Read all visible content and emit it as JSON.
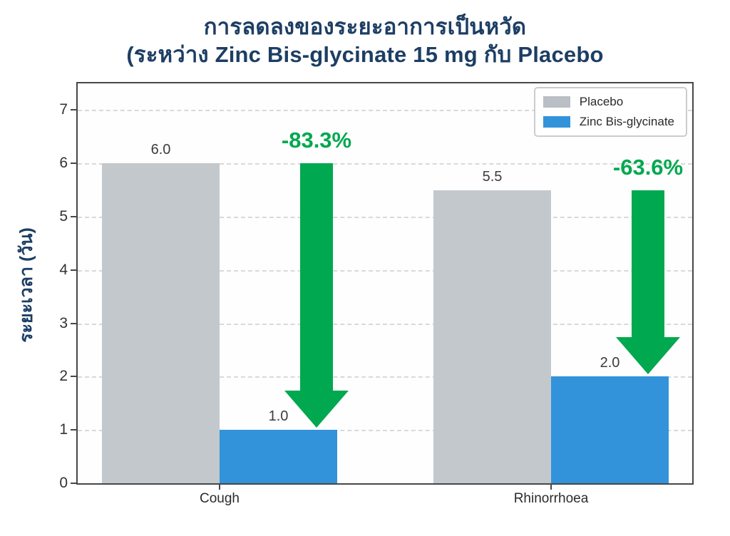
{
  "title": {
    "line1": "การลดลงของระยะอาการเป็นหวัด",
    "line2": "(ระหว่าง Zinc Bis-glycinate 15 mg กับ Placebo"
  },
  "chart_data": {
    "type": "bar",
    "categories": [
      "Cough",
      "Rhinorrhoea"
    ],
    "series": [
      {
        "name": "Placebo",
        "values": [
          6.0,
          5.5
        ],
        "color": "#c3c8cd"
      },
      {
        "name": "Zinc Bis-glycinate",
        "values": [
          1.0,
          2.0
        ],
        "color": "#3293da"
      }
    ],
    "bar_value_labels": [
      [
        "6.0",
        "5.5"
      ],
      [
        "1.0",
        "2.0"
      ]
    ],
    "ylabel": "ระยะเวลา (วัน)",
    "xlabel": "",
    "ylim": [
      0,
      7.5
    ],
    "yticks": [
      0,
      1,
      2,
      3,
      4,
      5,
      6,
      7
    ],
    "grid": "horizontal dashed",
    "legend_position": "upper right",
    "annotations": [
      {
        "category": "Cough",
        "text": "-83.3%",
        "arrow_from": 6.0,
        "arrow_to": 1.0
      },
      {
        "category": "Rhinorrhoea",
        "text": "-63.6%",
        "arrow_from": 5.5,
        "arrow_to": 2.0
      }
    ]
  },
  "colors": {
    "title_navy": "#1d3e64",
    "placebo_gray": "#c3c8cd",
    "zinc_blue": "#3293da",
    "arrow_green": "#00a84f",
    "gridline_gray": "#d9d9d9",
    "axis_dark": "#474747"
  }
}
